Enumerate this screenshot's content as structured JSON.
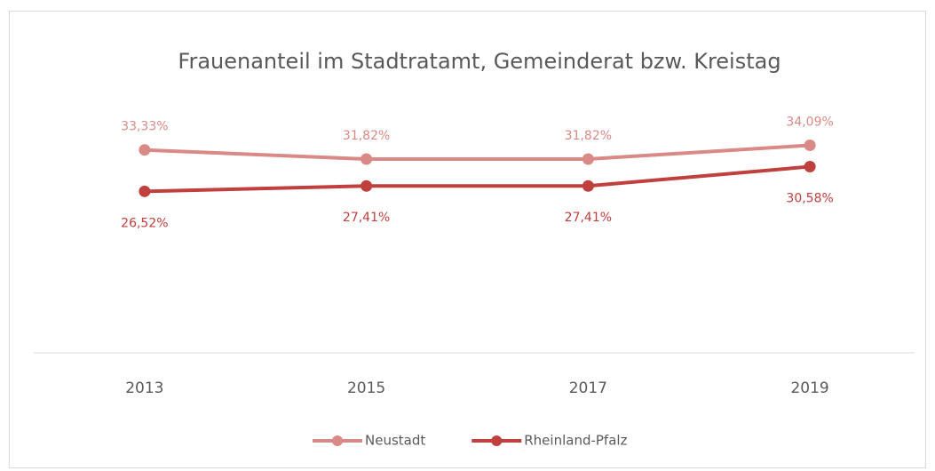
{
  "chart_data": {
    "type": "line",
    "title": "Frauenanteil im Stadtratamt, Gemeinderat bzw. Kreistag",
    "categories": [
      "2013",
      "2015",
      "2017",
      "2019"
    ],
    "series": [
      {
        "name": "Neustadt",
        "color": "#d98a86",
        "values": [
          33.33,
          31.82,
          31.82,
          34.09
        ],
        "value_labels": [
          "33,33%",
          "31,82%",
          "31,82%",
          "34,09%"
        ]
      },
      {
        "name": "Rheinland-Pfalz",
        "color": "#c0403e",
        "values": [
          26.52,
          27.41,
          27.41,
          30.58
        ],
        "value_labels": [
          "26,52%",
          "27,41%",
          "27,41%",
          "30,58%"
        ]
      }
    ],
    "ylim": [
      0,
      40
    ],
    "legend": "bottom"
  }
}
